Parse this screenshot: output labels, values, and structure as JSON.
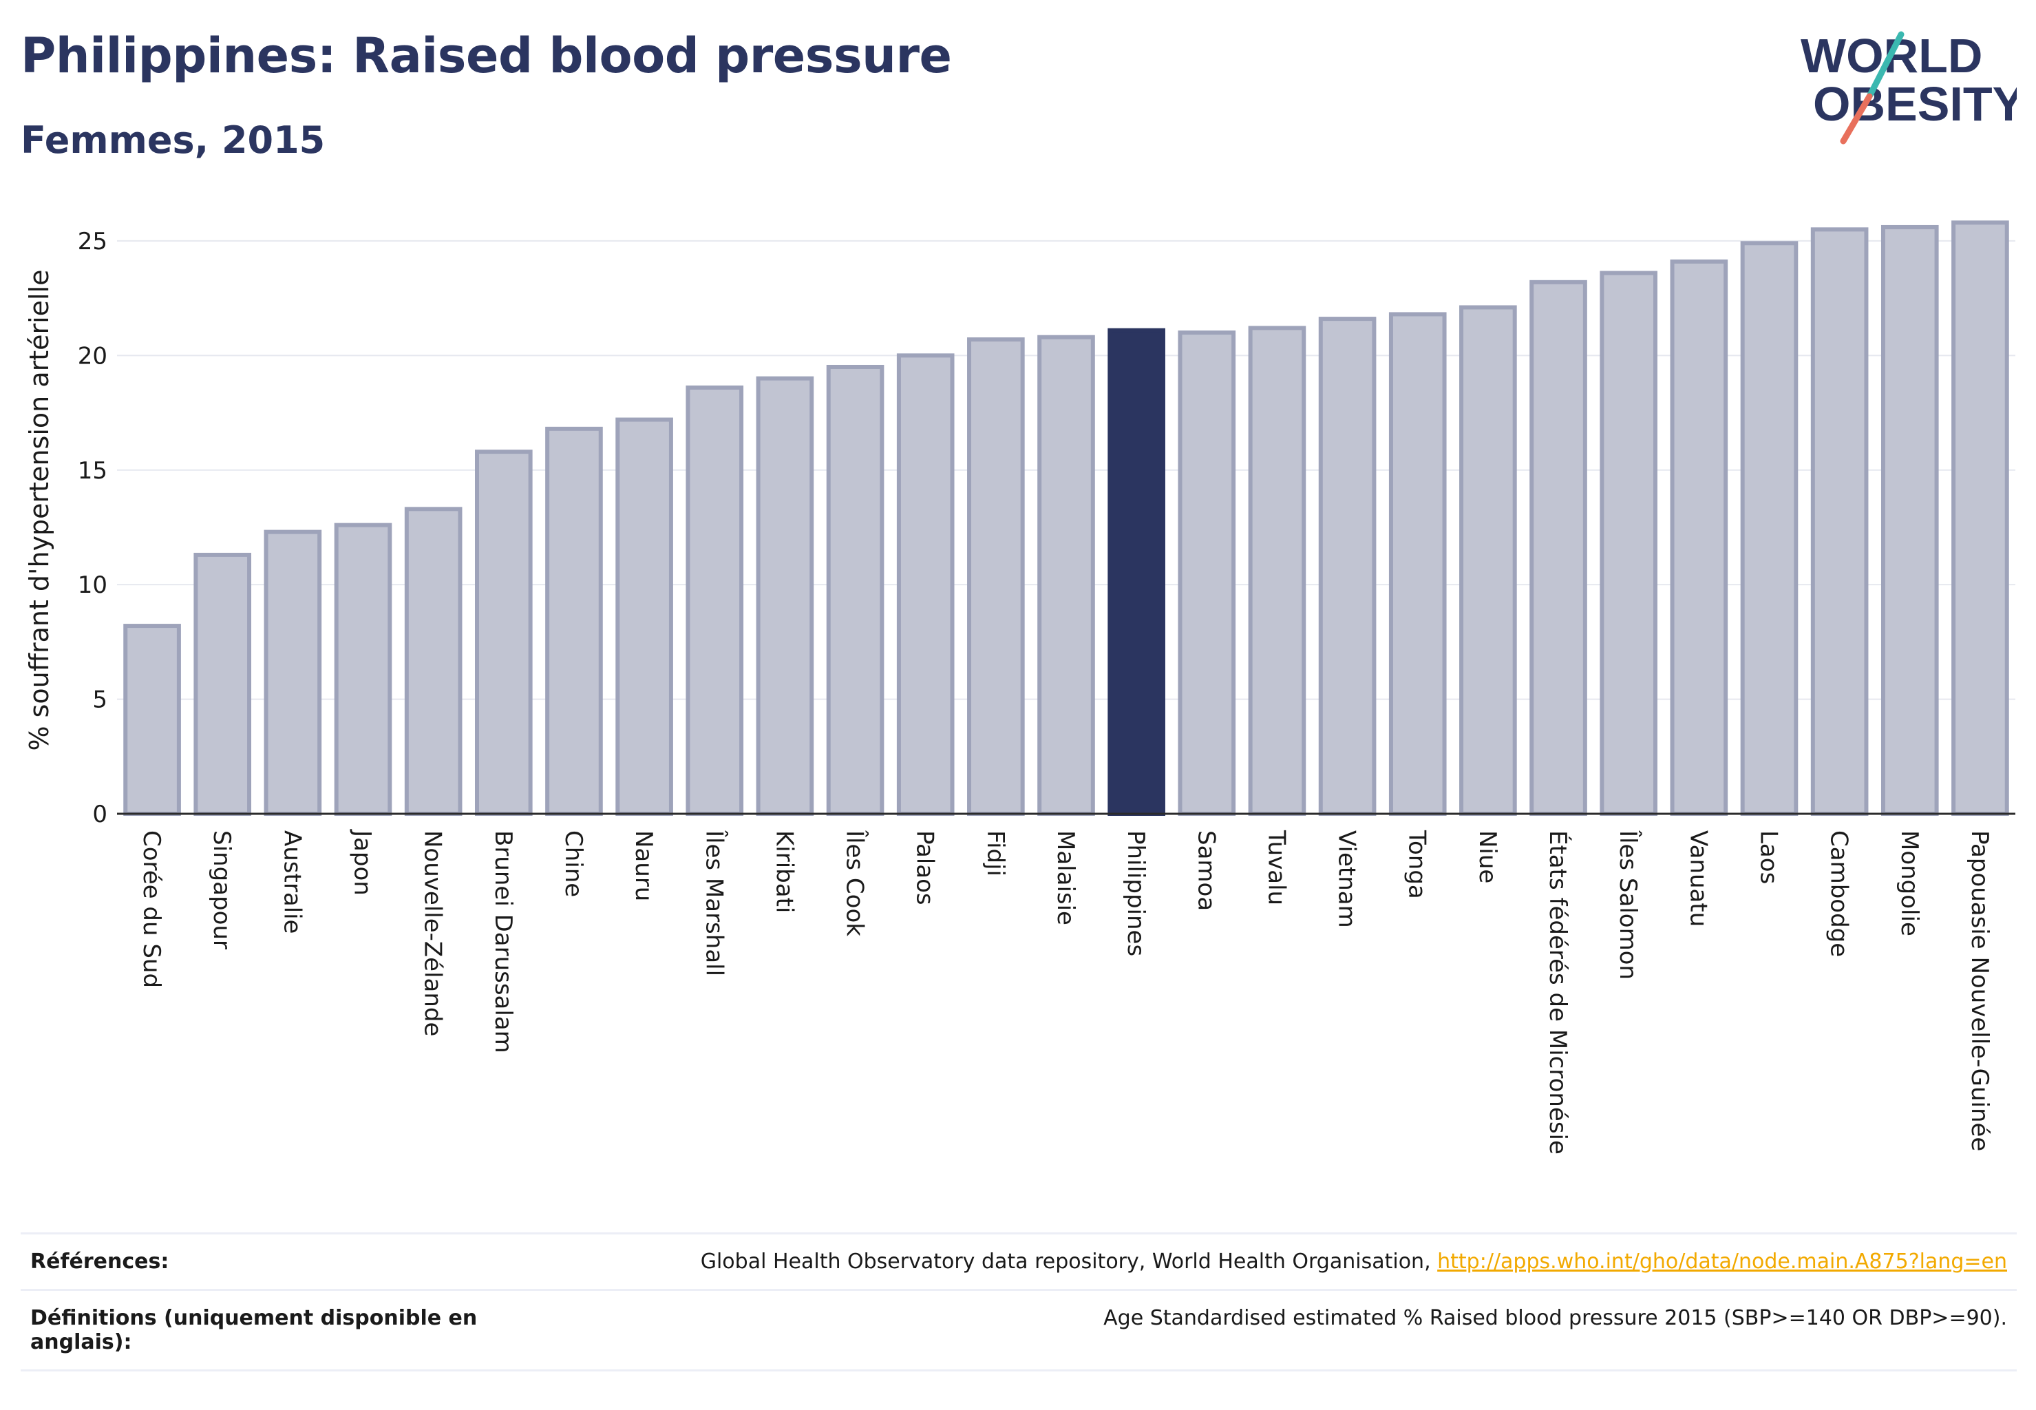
{
  "header": {
    "title": "Philippines: Raised blood pressure",
    "subtitle": "Femmes, 2015"
  },
  "logo": {
    "line1": "WORLD",
    "line2": "OBESITY",
    "colors": {
      "text": "#2b3560",
      "slash_teal": "#3bb8b0",
      "slash_coral": "#e8705c"
    }
  },
  "chart_data": {
    "type": "bar",
    "title": "Philippines: Raised blood pressure",
    "subtitle": "Femmes, 2015",
    "xlabel": "",
    "ylabel": "% souffrant d'hypertension artérielle",
    "ylim": [
      0,
      26.5
    ],
    "yticks": [
      0,
      5,
      10,
      15,
      20,
      25
    ],
    "grid": true,
    "highlight": "Philippines",
    "colors": {
      "bar": "#c1c4d2",
      "bar_border": "#9ea3ba",
      "highlight": "#2b3560",
      "grid": "#e6e8ef",
      "axis": "#2b2b2b"
    },
    "categories": [
      "Corée du Sud",
      "Singapour",
      "Australie",
      "Japon",
      "Nouvelle-Zélande",
      "Brunei Darussalam",
      "Chine",
      "Nauru",
      "Îles Marshall",
      "Kiribati",
      "Îles Cook",
      "Palaos",
      "Fidji",
      "Malaisie",
      "Philippines",
      "Samoa",
      "Tuvalu",
      "Vietnam",
      "Tonga",
      "Niue",
      "États fédérés de Micronésie",
      "Îles Salomon",
      "Vanuatu",
      "Laos",
      "Cambodge",
      "Mongolie",
      "Papouasie Nouvelle-Guinée"
    ],
    "values": [
      8.2,
      11.3,
      12.3,
      12.6,
      13.3,
      15.8,
      16.8,
      17.2,
      18.6,
      19.0,
      19.5,
      20.0,
      20.7,
      20.8,
      21.1,
      21.0,
      21.2,
      21.6,
      21.8,
      22.1,
      23.2,
      23.6,
      24.1,
      24.9,
      25.5,
      25.6,
      25.8
    ]
  },
  "references": {
    "ref_label": "Références:",
    "ref_text": "Global Health Observatory data repository, World Health Organisation, ",
    "ref_link": "http://apps.who.int/gho/data/node.main.A875?lang=en",
    "def_label": "Définitions (uniquement disponible en anglais):",
    "def_text": "Age Standardised estimated % Raised blood pressure 2015 (SBP>=140 OR DBP>=90)."
  }
}
